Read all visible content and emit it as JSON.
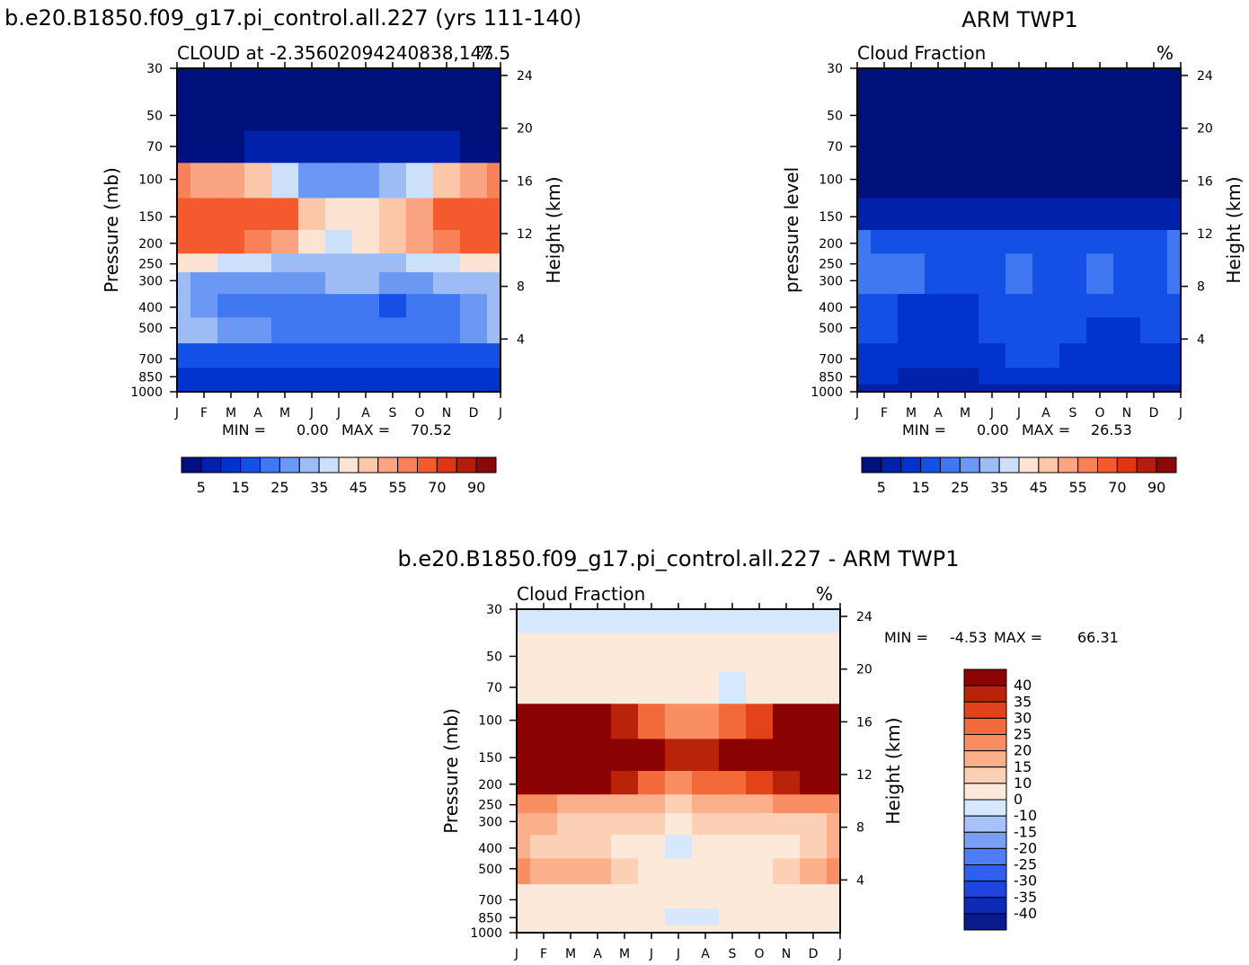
{
  "figure": {
    "left_model_title": "b.e20.B1850.f09_g17.pi_control.all.227 (yrs 111-140)",
    "right_obs_title": "ARM TWP1",
    "diff_title": "b.e20.B1850.f09_g17.pi_control.all.227 - ARM TWP1"
  },
  "colors": {
    "model_obs_scale": [
      "#00117e",
      "#0022aa",
      "#0033cc",
      "#1450e6",
      "#3f78f0",
      "#6a98f2",
      "#9dbcf5",
      "#cde0fa",
      "#fde4d2",
      "#fcc7a9",
      "#fba482",
      "#f8815a",
      "#f45a2e",
      "#e03515",
      "#b41c0c",
      "#8a0a0a"
    ],
    "diff_scale": [
      "#0a1a8c",
      "#0d2bb4",
      "#1f45e0",
      "#2e5ff0",
      "#4f7ef4",
      "#7a9ef4",
      "#a6c2f8",
      "#d6e8fd",
      "#fde9da",
      "#fcd0b4",
      "#fbaf8a",
      "#f88e62",
      "#f36a3a",
      "#e24318",
      "#b8230a",
      "#8b0303"
    ]
  },
  "chart_data": [
    {
      "type": "heatmap",
      "panel": "model",
      "subtitle": "CLOUD at -2.35602094240838,147.5",
      "unit": "%",
      "ylabel": "Pressure (mb)",
      "ylabel_right": "Height (km)",
      "x_ticks": [
        "J",
        "F",
        "M",
        "A",
        "M",
        "J",
        "J",
        "A",
        "S",
        "O",
        "N",
        "D",
        "J"
      ],
      "y_ticks": [
        "30",
        "50",
        "70",
        "100",
        "150",
        "200",
        "250",
        "300",
        "400",
        "500",
        "700",
        "850",
        "1000"
      ],
      "y_ticks_right": [
        "24",
        "20",
        "16",
        "12",
        "8",
        "4"
      ],
      "ylim": [
        1000,
        20
      ],
      "stats": {
        "min_label": "MIN =",
        "min": "0.00",
        "max_label": "MAX =",
        "max": "70.52"
      },
      "colorbar_labels": [
        "5",
        "15",
        "25",
        "35",
        "45",
        "55",
        "70",
        "90"
      ],
      "levels_mb": [
        30,
        50,
        70,
        100,
        150,
        200,
        250,
        300,
        400,
        500,
        700,
        850,
        1000
      ],
      "values": [
        [
          0,
          0,
          0,
          0,
          0,
          0,
          0,
          0,
          0,
          0,
          0,
          0,
          0
        ],
        [
          0,
          0,
          0,
          0,
          0,
          0,
          0,
          0,
          0,
          0,
          0,
          0,
          0
        ],
        [
          4,
          4,
          4,
          5,
          5,
          6,
          6,
          6,
          6,
          5,
          5,
          4,
          4
        ],
        [
          55,
          52,
          50,
          45,
          38,
          28,
          25,
          28,
          30,
          35,
          45,
          52,
          55
        ],
        [
          65,
          66,
          66,
          65,
          60,
          45,
          40,
          44,
          48,
          52,
          60,
          64,
          65
        ],
        [
          60,
          62,
          62,
          58,
          52,
          42,
          38,
          42,
          45,
          50,
          56,
          60,
          60
        ],
        [
          40,
          40,
          38,
          36,
          34,
          32,
          30,
          32,
          34,
          36,
          38,
          40,
          40
        ],
        [
          30,
          28,
          28,
          28,
          28,
          28,
          30,
          30,
          28,
          28,
          30,
          30,
          30
        ],
        [
          32,
          28,
          24,
          22,
          20,
          22,
          24,
          22,
          18,
          20,
          24,
          28,
          32
        ],
        [
          34,
          30,
          28,
          26,
          24,
          24,
          24,
          24,
          22,
          24,
          24,
          28,
          34
        ],
        [
          18,
          18,
          17,
          17,
          17,
          17,
          17,
          17,
          17,
          17,
          17,
          17,
          18
        ],
        [
          14,
          13,
          13,
          12,
          12,
          12,
          10,
          12,
          13,
          13,
          13,
          13,
          14
        ],
        [
          14,
          13,
          13,
          13,
          13,
          13,
          13,
          13,
          13,
          13,
          13,
          13,
          14
        ]
      ]
    },
    {
      "type": "heatmap",
      "panel": "obs",
      "subtitle": "Cloud Fraction",
      "unit": "%",
      "ylabel": "pressure level",
      "ylabel_right": "Height (km)",
      "x_ticks": [
        "J",
        "F",
        "M",
        "A",
        "M",
        "J",
        "J",
        "A",
        "S",
        "O",
        "N",
        "D",
        "J"
      ],
      "y_ticks": [
        "30",
        "50",
        "70",
        "100",
        "150",
        "200",
        "250",
        "300",
        "400",
        "500",
        "700",
        "850",
        "1000"
      ],
      "y_ticks_right": [
        "24",
        "20",
        "16",
        "12",
        "8",
        "4"
      ],
      "ylim": [
        1000,
        20
      ],
      "stats": {
        "min_label": "MIN =",
        "min": "0.00",
        "max_label": "MAX =",
        "max": "26.53"
      },
      "colorbar_labels": [
        "5",
        "15",
        "25",
        "35",
        "45",
        "55",
        "70",
        "90"
      ],
      "levels_mb": [
        30,
        50,
        70,
        100,
        150,
        200,
        250,
        300,
        400,
        500,
        700,
        850,
        1000
      ],
      "values": [
        [
          0,
          0,
          0,
          0,
          0,
          0,
          0,
          0,
          0,
          0,
          0,
          0,
          0
        ],
        [
          0,
          0,
          0,
          0,
          0,
          0,
          0,
          0,
          0,
          0,
          0,
          0,
          0
        ],
        [
          0,
          0,
          0,
          0,
          0,
          0,
          0,
          0,
          0,
          0,
          0,
          0,
          0
        ],
        [
          1,
          1,
          1,
          1,
          1,
          1,
          1,
          1,
          1,
          1,
          1,
          1,
          1
        ],
        [
          7,
          6,
          5,
          5,
          5,
          5,
          6,
          6,
          7,
          7,
          7,
          7,
          7
        ],
        [
          20,
          19,
          18,
          17,
          15,
          15,
          18,
          16,
          17,
          17,
          17,
          17,
          20
        ],
        [
          22,
          22,
          20,
          17,
          15,
          15,
          24,
          16,
          16,
          22,
          18,
          16,
          22
        ],
        [
          22,
          22,
          20,
          17,
          16,
          15,
          22,
          16,
          16,
          22,
          17,
          16,
          22
        ],
        [
          16,
          15,
          14,
          13,
          14,
          16,
          17,
          17,
          16,
          15,
          15,
          15,
          16
        ],
        [
          15,
          15,
          13,
          11,
          14,
          16,
          17,
          18,
          16,
          14,
          14,
          15,
          15
        ],
        [
          14,
          13,
          11,
          10,
          12,
          14,
          15,
          15,
          11,
          11,
          13,
          14,
          14
        ],
        [
          12,
          11,
          9,
          9,
          9,
          10,
          12,
          13,
          11,
          10,
          11,
          12,
          12
        ],
        [
          9,
          9,
          9,
          9,
          9,
          9,
          9,
          9,
          9,
          9,
          9,
          9,
          9
        ]
      ]
    },
    {
      "type": "heatmap",
      "panel": "difference",
      "subtitle": "Cloud Fraction",
      "unit": "%",
      "ylabel": "Pressure (mb)",
      "ylabel_right": "Height (km)",
      "x_ticks": [
        "J",
        "F",
        "M",
        "A",
        "M",
        "J",
        "J",
        "A",
        "S",
        "O",
        "N",
        "D",
        "J"
      ],
      "y_ticks": [
        "30",
        "50",
        "70",
        "100",
        "150",
        "200",
        "250",
        "300",
        "400",
        "500",
        "700",
        "850",
        "1000"
      ],
      "y_ticks_right": [
        "24",
        "20",
        "16",
        "12",
        "8",
        "4"
      ],
      "ylim": [
        1000,
        20
      ],
      "stats": {
        "min_label": "MIN =",
        "min": "-4.53",
        "max_label": "MAX =",
        "max": "66.31"
      },
      "colorbar_labels": [
        "40",
        "35",
        "30",
        "25",
        "20",
        "15",
        "10",
        "0",
        "-10",
        "-15",
        "-20",
        "-25",
        "-30",
        "-35",
        "-40"
      ],
      "levels_mb": [
        30,
        50,
        70,
        100,
        150,
        200,
        250,
        300,
        400,
        500,
        700,
        850,
        1000
      ],
      "values": [
        [
          -3,
          -3,
          -3,
          -3,
          -3,
          -3,
          -3,
          -3,
          -3,
          -3,
          -3,
          -3,
          -3
        ],
        [
          3,
          3,
          3,
          3,
          3,
          3,
          3,
          3,
          3,
          3,
          3,
          3,
          3
        ],
        [
          4,
          4,
          4,
          4,
          4,
          4,
          4,
          4,
          -2,
          4,
          4,
          4,
          4
        ],
        [
          50,
          48,
          45,
          42,
          35,
          25,
          22,
          24,
          27,
          30,
          40,
          48,
          50
        ],
        [
          60,
          60,
          60,
          58,
          55,
          40,
          36,
          38,
          40,
          45,
          55,
          58,
          60
        ],
        [
          42,
          44,
          44,
          42,
          38,
          27,
          22,
          26,
          28,
          32,
          38,
          42,
          42
        ],
        [
          20,
          20,
          19,
          18,
          18,
          17,
          12,
          15,
          17,
          18,
          20,
          20,
          20
        ],
        [
          16,
          15,
          14,
          13,
          12,
          11,
          4,
          11,
          12,
          12,
          13,
          14,
          16
        ],
        [
          16,
          14,
          12,
          11,
          8,
          6,
          -2,
          5,
          4,
          6,
          9,
          13,
          16
        ],
        [
          22,
          18,
          18,
          16,
          12,
          8,
          8,
          8,
          6,
          8,
          10,
          16,
          22
        ],
        [
          6,
          6,
          6,
          5,
          4,
          3,
          3,
          3,
          3,
          3,
          4,
          5,
          6
        ],
        [
          3,
          3,
          3,
          3,
          3,
          3,
          -2,
          -2,
          3,
          3,
          3,
          3,
          3
        ],
        [
          3,
          3,
          3,
          3,
          3,
          3,
          3,
          3,
          3,
          3,
          3,
          3,
          3
        ]
      ]
    }
  ]
}
